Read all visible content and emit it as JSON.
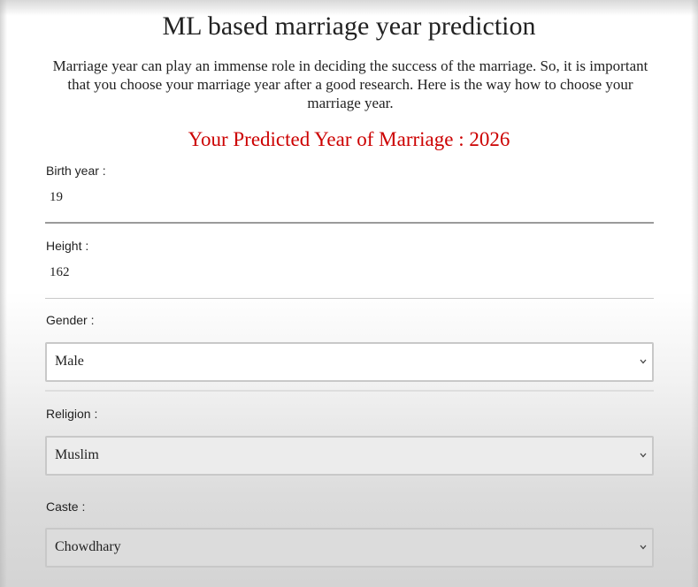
{
  "header": {
    "title": "ML based marriage year prediction",
    "description": "Marriage year can play an immense role in deciding the success of the marriage. So, it is important that you choose your marriage year after a good research. Here is the way how to choose your marriage year."
  },
  "result": {
    "text": "Your Predicted Year of Marriage : 2026"
  },
  "form": {
    "birth_year": {
      "label": "Birth year :",
      "value": "19"
    },
    "height": {
      "label": "Height :",
      "value": "162"
    },
    "gender": {
      "label": "Gender :",
      "selected": "Male"
    },
    "religion": {
      "label": "Religion :",
      "selected": "Muslim"
    },
    "caste": {
      "label": "Caste :",
      "selected": "Chowdhary"
    }
  },
  "colors": {
    "prediction_text": "#cc0000",
    "field_border": "#c8c8c8",
    "active_underline": "#9a9a9a"
  },
  "icons": {
    "select_arrow": "chevron-down-icon"
  }
}
